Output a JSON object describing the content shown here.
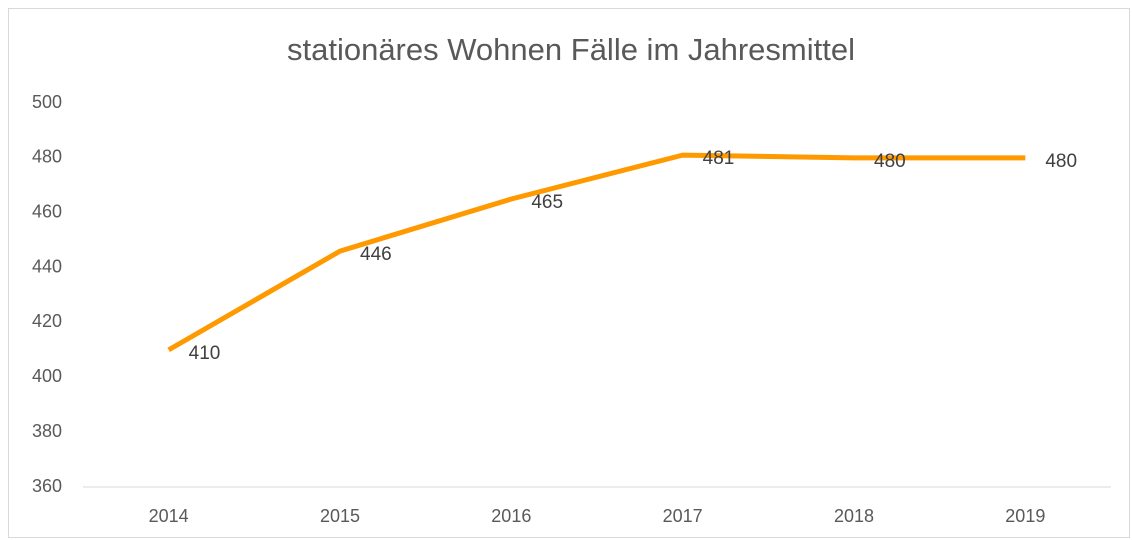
{
  "chart_data": {
    "type": "line",
    "title": "stationäres Wohnen Fälle im Jahresmittel",
    "categories": [
      "2014",
      "2015",
      "2016",
      "2017",
      "2018",
      "2019"
    ],
    "values": [
      410,
      446,
      465,
      481,
      480,
      480
    ],
    "color": "#ff9900",
    "ylim": [
      360,
      500
    ],
    "yticks": [
      360,
      380,
      400,
      420,
      440,
      460,
      480,
      500
    ],
    "grid": false,
    "data_labels": true
  }
}
